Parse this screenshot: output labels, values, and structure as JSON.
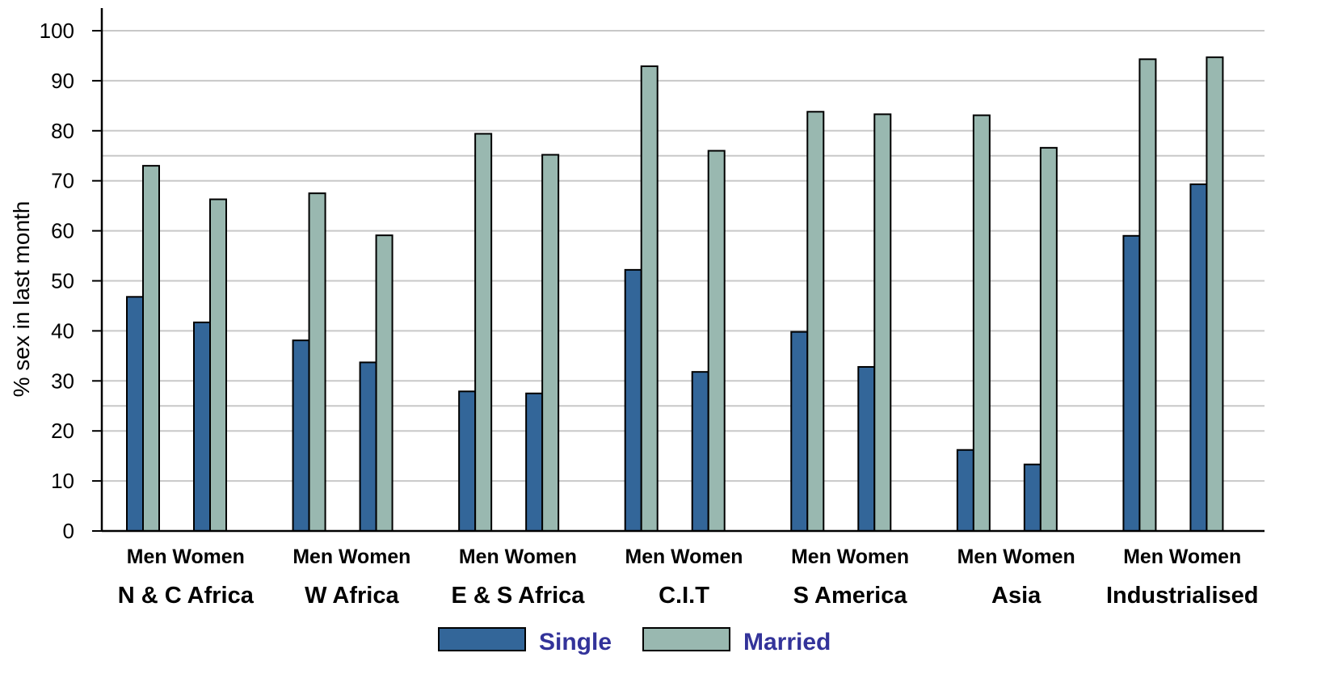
{
  "chart_data": {
    "type": "bar",
    "title": "",
    "ylabel": "% sex in last month",
    "xlabel": "",
    "ylim": [
      0,
      100
    ],
    "yticks": [
      0,
      10,
      20,
      30,
      40,
      50,
      60,
      70,
      80,
      90,
      100
    ],
    "grid": "horizontal",
    "groups": [
      "N & C Africa",
      "W Africa",
      "E & S Africa",
      "C.I.T",
      "S America",
      "Asia",
      "Industrialised"
    ],
    "subgroups": [
      "Men",
      "Women"
    ],
    "subgroup_label": "Men Women",
    "series": [
      {
        "name": "Single",
        "color": "#336699",
        "values": [
          [
            46.8,
            41.7
          ],
          [
            38.1,
            33.7
          ],
          [
            27.9,
            27.5
          ],
          [
            52.2,
            31.8
          ],
          [
            39.8,
            32.8
          ],
          [
            16.2,
            13.3
          ],
          [
            59.0,
            69.3
          ]
        ]
      },
      {
        "name": "Married",
        "color": "#99b8b0",
        "values": [
          [
            73.0,
            66.3
          ],
          [
            67.5,
            59.1
          ],
          [
            79.4,
            75.2
          ],
          [
            92.9,
            76.0
          ],
          [
            83.8,
            83.3
          ],
          [
            83.1,
            76.6
          ],
          [
            94.3,
            94.7
          ]
        ]
      }
    ],
    "legend": {
      "position": "bottom-center",
      "text_color": "#33339a"
    }
  }
}
